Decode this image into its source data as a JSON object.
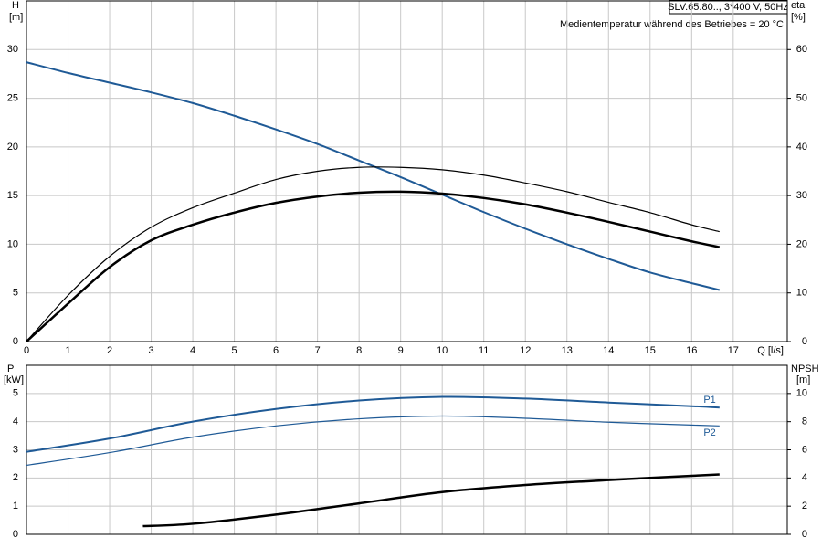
{
  "chart_data": [
    {
      "type": "line",
      "title": "SLV.65.80.., 3*400 V, 50Hz",
      "annotation": "Medientemperatur während des Betriebes = 20 °C",
      "ylabel": "H",
      "yunit": "[m]",
      "y2label": "eta",
      "y2unit": "[%]",
      "xlabel": "Q [l/s]",
      "xlim": [
        0,
        18.3
      ],
      "xticks": [
        0,
        1,
        2,
        3,
        4,
        5,
        6,
        7,
        8,
        9,
        10,
        11,
        12,
        13,
        14,
        15,
        16,
        17
      ],
      "ylim": [
        0,
        35
      ],
      "yticks": [
        0,
        5,
        10,
        15,
        20,
        25,
        30
      ],
      "y2lim": [
        0,
        70
      ],
      "y2ticks": [
        0,
        10,
        20,
        30,
        40,
        50,
        60
      ],
      "grid": true,
      "series": [
        {
          "color": "#1f5a96",
          "linewidth": 2,
          "x": [
            0,
            1,
            2,
            3,
            4,
            5,
            6,
            7,
            8,
            9,
            10,
            11,
            12,
            13,
            14,
            15,
            16,
            16.67
          ],
          "values": [
            28.7,
            27.6,
            26.6,
            25.6,
            24.5,
            23.2,
            21.8,
            20.3,
            18.6,
            16.9,
            15.1,
            13.3,
            11.6,
            10.0,
            8.5,
            7.1,
            6.0,
            5.3
          ]
        },
        {
          "color": "#000000",
          "linewidth": 2.5,
          "axis": "y2",
          "x": [
            0,
            1,
            2,
            3,
            4,
            5,
            6,
            7,
            8,
            9,
            10,
            11,
            12,
            13,
            14,
            15,
            16,
            16.67
          ],
          "values": [
            0,
            7.8,
            15.3,
            20.8,
            24,
            26.5,
            28.5,
            29.8,
            30.6,
            30.8,
            30.4,
            29.5,
            28.2,
            26.5,
            24.6,
            22.6,
            20.6,
            19.4
          ]
        },
        {
          "color": "#000000",
          "linewidth": 1.2,
          "axis": "y2",
          "x": [
            0,
            1,
            2,
            3,
            4,
            5,
            6,
            7,
            8,
            9,
            10,
            11,
            12,
            13,
            14,
            15,
            16,
            16.67
          ],
          "values": [
            0,
            9.5,
            17.5,
            23.5,
            27.5,
            30.5,
            33.3,
            35,
            35.8,
            35.8,
            35.3,
            34.2,
            32.6,
            30.8,
            28.6,
            26.5,
            24,
            22.6
          ]
        }
      ]
    },
    {
      "type": "line",
      "ylabel": "P",
      "yunit": "[kW]",
      "y2label": "NPSH",
      "y2unit": "[m]",
      "xlim": [
        0,
        18.3
      ],
      "xticks": [
        0,
        1,
        2,
        3,
        4,
        5,
        6,
        7,
        8,
        9,
        10,
        11,
        12,
        13,
        14,
        15,
        16,
        17
      ],
      "ylim": [
        0,
        6
      ],
      "yticks": [
        0,
        1,
        2,
        3,
        4,
        5
      ],
      "y2lim": [
        0,
        12
      ],
      "y2ticks": [
        0,
        2,
        4,
        6,
        8,
        10
      ],
      "grid": true,
      "series": [
        {
          "name": "P1",
          "color": "#1f5a96",
          "linewidth": 2,
          "x": [
            0,
            2,
            4,
            6,
            8,
            10,
            12,
            14,
            16,
            16.67
          ],
          "values": [
            2.93,
            3.4,
            4.0,
            4.45,
            4.75,
            4.88,
            4.82,
            4.68,
            4.55,
            4.5
          ]
        },
        {
          "name": "P2",
          "color": "#1f5a96",
          "linewidth": 1.2,
          "x": [
            0,
            2,
            4,
            6,
            8,
            10,
            12,
            14,
            16,
            16.67
          ],
          "values": [
            2.45,
            2.9,
            3.45,
            3.85,
            4.1,
            4.2,
            4.12,
            3.98,
            3.88,
            3.85
          ]
        },
        {
          "color": "#000000",
          "linewidth": 2.5,
          "axis": "y2",
          "x": [
            2.8,
            4,
            6,
            8,
            10,
            12,
            14,
            16,
            16.67
          ],
          "values": [
            0.58,
            0.75,
            1.4,
            2.2,
            3.0,
            3.5,
            3.85,
            4.15,
            4.25
          ]
        }
      ]
    }
  ]
}
